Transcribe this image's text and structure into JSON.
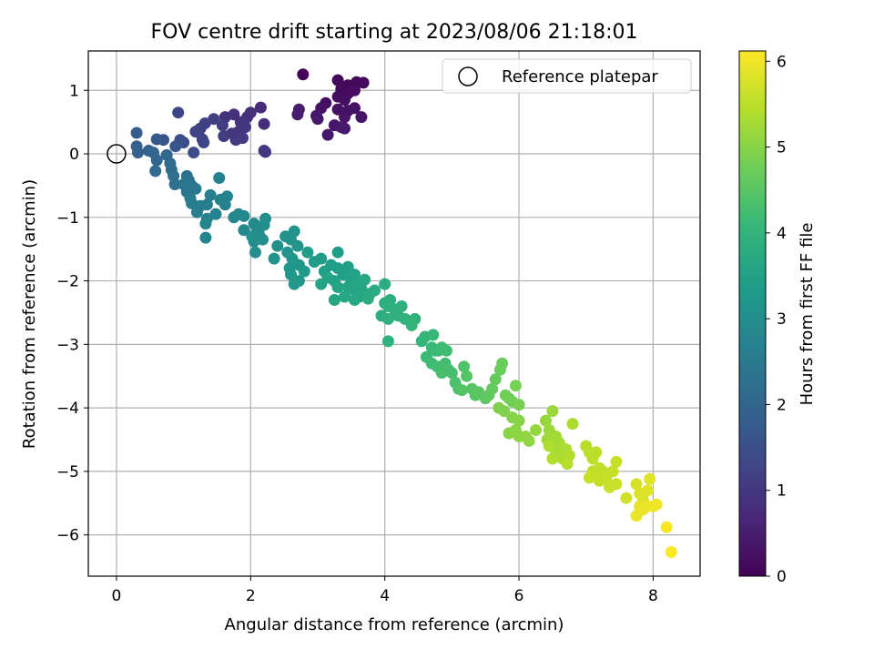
{
  "chart_data": {
    "type": "scatter",
    "title": "FOV centre drift starting at 2023/08/06 21:18:01",
    "xlabel": "Angular distance from reference (arcmin)",
    "ylabel": "Rotation from reference (arcmin)",
    "xlim": [
      -0.42,
      8.7
    ],
    "ylim": [
      -6.65,
      1.62
    ],
    "xticks": [
      0,
      2,
      4,
      6,
      8
    ],
    "yticks": [
      1,
      0,
      -1,
      -2,
      -3,
      -4,
      -5,
      -6
    ],
    "grid": true,
    "legend": {
      "placement": "top-right",
      "entries": [
        "Reference platepar"
      ]
    },
    "reference_point": {
      "x": 0,
      "y": 0,
      "marker": "open-circle"
    },
    "colorbar": {
      "label": "Hours from first FF file",
      "range": [
        0,
        6.12
      ],
      "ticks": [
        0,
        1,
        2,
        3,
        4,
        5,
        6
      ],
      "colormap": "viridis",
      "colormap_stops": [
        "#440154",
        "#482878",
        "#3e4989",
        "#31688e",
        "#26828e",
        "#1f9e89",
        "#35b779",
        "#6ece58",
        "#b5de2b",
        "#fde725"
      ]
    },
    "series": [
      {
        "points": [
          [
            2.78,
            1.25,
            0.05
          ],
          [
            3.3,
            1.16,
            0.1
          ],
          [
            3.45,
            1.08,
            0.1
          ],
          [
            3.58,
            1.13,
            0.12
          ],
          [
            3.68,
            1.12,
            0.15
          ],
          [
            3.35,
            1.02,
            0.15
          ],
          [
            3.45,
            0.95,
            0.15
          ],
          [
            3.55,
            1.0,
            0.2
          ],
          [
            3.3,
            0.9,
            0.2
          ],
          [
            3.4,
            0.85,
            0.25
          ],
          [
            3.12,
            0.8,
            0.25
          ],
          [
            3.05,
            0.72,
            0.3
          ],
          [
            3.3,
            0.7,
            0.3
          ],
          [
            3.45,
            0.68,
            0.3
          ],
          [
            3.55,
            0.72,
            0.3
          ],
          [
            3.65,
            0.58,
            0.35
          ],
          [
            3.4,
            0.58,
            0.35
          ],
          [
            3.25,
            0.45,
            0.35
          ],
          [
            3.0,
            0.55,
            0.4
          ],
          [
            2.98,
            0.6,
            0.4
          ],
          [
            3.4,
            0.4,
            0.4
          ],
          [
            3.35,
            0.42,
            0.45
          ],
          [
            3.15,
            0.3,
            0.4
          ],
          [
            2.72,
            0.7,
            0.5
          ],
          [
            2.7,
            0.62,
            0.5
          ],
          [
            2.15,
            0.73,
            0.75
          ],
          [
            2.2,
            0.47,
            0.8
          ],
          [
            2.0,
            0.65,
            0.8
          ],
          [
            1.95,
            0.58,
            0.85
          ],
          [
            1.85,
            0.5,
            0.9
          ],
          [
            1.75,
            0.62,
            0.85
          ],
          [
            1.62,
            0.58,
            0.9
          ],
          [
            1.82,
            0.35,
            0.95
          ],
          [
            1.72,
            0.32,
            1.0
          ],
          [
            1.92,
            0.42,
            1.0
          ],
          [
            1.88,
            0.25,
            1.05
          ],
          [
            1.78,
            0.22,
            1.05
          ],
          [
            1.6,
            0.28,
            1.1
          ],
          [
            1.58,
            0.45,
            1.1
          ],
          [
            1.45,
            0.55,
            1.15
          ],
          [
            1.32,
            0.48,
            1.2
          ],
          [
            1.25,
            0.4,
            1.2
          ],
          [
            1.18,
            0.35,
            1.25
          ],
          [
            1.28,
            0.23,
            1.25
          ],
          [
            2.22,
            0.03,
            0.95
          ],
          [
            2.2,
            0.05,
            1.0
          ],
          [
            0.92,
            0.65,
            1.3
          ],
          [
            1.0,
            0.18,
            1.4
          ],
          [
            1.15,
            0.02,
            1.45
          ],
          [
            1.3,
            0.18,
            1.3
          ],
          [
            0.95,
            0.22,
            1.5
          ],
          [
            0.7,
            0.22,
            1.6
          ],
          [
            0.88,
            0.12,
            1.65
          ],
          [
            0.6,
            0.23,
            1.7
          ],
          [
            0.3,
            0.33,
            1.8
          ],
          [
            0.3,
            0.12,
            1.85
          ],
          [
            0.32,
            0.02,
            1.9
          ],
          [
            0.48,
            0.05,
            1.9
          ],
          [
            0.55,
            0.02,
            2.0
          ],
          [
            0.6,
            -0.1,
            2.0
          ],
          [
            0.75,
            -0.02,
            2.05
          ],
          [
            0.8,
            -0.15,
            2.1
          ],
          [
            0.58,
            -0.27,
            2.1
          ],
          [
            0.82,
            -0.25,
            2.15
          ],
          [
            0.85,
            -0.35,
            2.2
          ],
          [
            0.87,
            -0.48,
            2.25
          ],
          [
            1.05,
            -0.35,
            2.3
          ],
          [
            1.08,
            -0.42,
            2.35
          ],
          [
            1.12,
            -0.5,
            2.35
          ],
          [
            1.05,
            -0.6,
            2.4
          ],
          [
            1.18,
            -0.55,
            2.45
          ],
          [
            1.0,
            -0.48,
            2.4
          ],
          [
            1.1,
            -0.7,
            2.5
          ],
          [
            1.12,
            -0.78,
            2.55
          ],
          [
            1.2,
            -0.92,
            2.6
          ],
          [
            1.25,
            -0.82,
            2.6
          ],
          [
            1.35,
            -0.8,
            2.65
          ],
          [
            1.4,
            -0.65,
            2.65
          ],
          [
            1.48,
            -0.95,
            2.7
          ],
          [
            1.55,
            -0.72,
            2.7
          ],
          [
            1.53,
            -0.38,
            2.7
          ],
          [
            1.62,
            -0.8,
            2.75
          ],
          [
            1.65,
            -0.67,
            2.75
          ],
          [
            1.35,
            -1.02,
            2.75
          ],
          [
            1.33,
            -1.1,
            2.8
          ],
          [
            1.33,
            -1.32,
            2.8
          ],
          [
            1.75,
            -1.0,
            2.85
          ],
          [
            1.82,
            -0.95,
            2.85
          ],
          [
            1.9,
            -0.98,
            2.9
          ],
          [
            1.9,
            -1.2,
            2.9
          ],
          [
            2.05,
            -1.1,
            2.95
          ],
          [
            2.1,
            -1.18,
            2.95
          ],
          [
            2.12,
            -1.25,
            2.95
          ],
          [
            2.2,
            -1.12,
            3.0
          ],
          [
            2.22,
            -1.02,
            3.0
          ],
          [
            2.18,
            -1.35,
            3.0
          ],
          [
            2.07,
            -1.55,
            3.0
          ],
          [
            2.05,
            -1.38,
            3.0
          ],
          [
            2.02,
            -1.3,
            3.05
          ],
          [
            2.4,
            -1.45,
            3.05
          ],
          [
            2.52,
            -1.3,
            3.1
          ],
          [
            2.6,
            -1.35,
            3.1
          ],
          [
            2.65,
            -1.22,
            3.15
          ],
          [
            2.7,
            -1.45,
            3.15
          ],
          [
            2.55,
            -1.55,
            3.15
          ],
          [
            2.35,
            -1.65,
            3.15
          ],
          [
            2.62,
            -1.65,
            3.2
          ],
          [
            2.58,
            -1.8,
            3.2
          ],
          [
            2.72,
            -1.75,
            3.2
          ],
          [
            2.6,
            -1.9,
            3.2
          ],
          [
            2.65,
            -2.05,
            3.25
          ],
          [
            2.72,
            -2.0,
            3.25
          ],
          [
            2.8,
            -1.85,
            3.3
          ],
          [
            2.85,
            -1.55,
            3.35
          ],
          [
            2.95,
            -1.7,
            3.35
          ],
          [
            3.05,
            -1.65,
            3.35
          ],
          [
            3.1,
            -1.85,
            3.4
          ],
          [
            3.2,
            -1.75,
            3.4
          ],
          [
            3.3,
            -1.55,
            3.4
          ],
          [
            3.3,
            -1.8,
            3.45
          ],
          [
            3.38,
            -1.9,
            3.45
          ],
          [
            3.45,
            -1.78,
            3.45
          ],
          [
            3.5,
            -2.0,
            3.5
          ],
          [
            3.55,
            -1.9,
            3.5
          ],
          [
            3.25,
            -2.0,
            3.5
          ],
          [
            3.3,
            -2.1,
            3.55
          ],
          [
            3.45,
            -2.1,
            3.55
          ],
          [
            3.55,
            -2.15,
            3.55
          ],
          [
            3.6,
            -2.05,
            3.6
          ],
          [
            3.65,
            -2.12,
            3.6
          ],
          [
            3.62,
            -2.25,
            3.65
          ],
          [
            3.55,
            -2.3,
            3.65
          ],
          [
            3.4,
            -2.25,
            3.65
          ],
          [
            3.25,
            -2.3,
            3.6
          ],
          [
            3.05,
            -2.05,
            3.6
          ],
          [
            3.15,
            -1.95,
            3.55
          ],
          [
            3.7,
            -1.98,
            3.65
          ],
          [
            3.78,
            -2.2,
            3.7
          ],
          [
            3.85,
            -2.15,
            3.75
          ],
          [
            3.75,
            -2.28,
            3.75
          ],
          [
            3.95,
            -2.55,
            3.8
          ],
          [
            4.0,
            -2.35,
            3.8
          ],
          [
            4.05,
            -2.4,
            3.85
          ],
          [
            4.0,
            -2.05,
            3.8
          ],
          [
            4.08,
            -2.3,
            3.85
          ],
          [
            4.15,
            -2.45,
            3.9
          ],
          [
            4.2,
            -2.55,
            3.9
          ],
          [
            4.25,
            -2.4,
            3.9
          ],
          [
            4.05,
            -2.6,
            3.9
          ],
          [
            4.3,
            -2.6,
            3.95
          ],
          [
            4.45,
            -2.6,
            3.95
          ],
          [
            4.4,
            -2.7,
            4.0
          ],
          [
            4.05,
            -2.95,
            3.95
          ],
          [
            4.55,
            -2.95,
            4.05
          ],
          [
            4.6,
            -2.88,
            4.05
          ],
          [
            4.72,
            -2.85,
            4.1
          ],
          [
            4.7,
            -3.05,
            4.1
          ],
          [
            4.75,
            -3.1,
            4.15
          ],
          [
            4.8,
            -3.1,
            4.15
          ],
          [
            4.62,
            -3.2,
            4.15
          ],
          [
            4.85,
            -3.05,
            4.2
          ],
          [
            4.92,
            -3.1,
            4.2
          ],
          [
            4.7,
            -3.3,
            4.2
          ],
          [
            4.78,
            -3.35,
            4.25
          ],
          [
            4.9,
            -3.3,
            4.25
          ],
          [
            4.95,
            -3.4,
            4.3
          ],
          [
            5.0,
            -3.45,
            4.3
          ],
          [
            4.85,
            -3.45,
            4.3
          ],
          [
            5.05,
            -3.6,
            4.35
          ],
          [
            5.1,
            -3.7,
            4.35
          ],
          [
            5.18,
            -3.35,
            4.4
          ],
          [
            5.22,
            -3.5,
            4.45
          ],
          [
            5.15,
            -3.72,
            4.45
          ],
          [
            5.3,
            -3.7,
            4.5
          ],
          [
            5.35,
            -3.8,
            4.5
          ],
          [
            5.4,
            -3.75,
            4.55
          ],
          [
            5.5,
            -3.85,
            4.55
          ],
          [
            5.55,
            -3.8,
            4.6
          ],
          [
            5.6,
            -3.7,
            4.65
          ],
          [
            5.65,
            -3.55,
            4.65
          ],
          [
            5.72,
            -3.4,
            4.7
          ],
          [
            5.75,
            -3.3,
            4.7
          ],
          [
            5.8,
            -3.8,
            4.75
          ],
          [
            5.85,
            -3.85,
            4.75
          ],
          [
            5.9,
            -3.9,
            4.8
          ],
          [
            5.95,
            -3.65,
            4.85
          ],
          [
            6.0,
            -3.95,
            4.85
          ],
          [
            5.7,
            -4.0,
            4.9
          ],
          [
            5.78,
            -4.05,
            4.9
          ],
          [
            5.9,
            -4.15,
            4.95
          ],
          [
            6.0,
            -4.2,
            5.0
          ],
          [
            5.85,
            -4.4,
            5.0
          ],
          [
            5.95,
            -4.35,
            5.05
          ],
          [
            6.0,
            -4.45,
            5.05
          ],
          [
            6.1,
            -4.45,
            5.1
          ],
          [
            6.15,
            -4.52,
            5.1
          ],
          [
            6.25,
            -4.35,
            5.15
          ],
          [
            6.4,
            -4.2,
            5.15
          ],
          [
            6.45,
            -4.35,
            5.2
          ],
          [
            6.5,
            -4.05,
            5.2
          ],
          [
            6.42,
            -4.5,
            5.25
          ],
          [
            6.55,
            -4.45,
            5.25
          ],
          [
            6.6,
            -4.55,
            5.3
          ],
          [
            6.55,
            -4.68,
            5.3
          ],
          [
            6.7,
            -4.65,
            5.35
          ],
          [
            6.65,
            -4.8,
            5.35
          ],
          [
            6.75,
            -4.75,
            5.4
          ],
          [
            6.8,
            -4.25,
            5.35
          ],
          [
            6.5,
            -4.8,
            5.4
          ],
          [
            6.72,
            -4.88,
            5.45
          ],
          [
            6.45,
            -4.6,
            5.4
          ],
          [
            7.0,
            -4.6,
            5.45
          ],
          [
            7.05,
            -4.7,
            5.5
          ],
          [
            7.1,
            -4.8,
            5.5
          ],
          [
            7.15,
            -4.7,
            5.5
          ],
          [
            7.2,
            -4.95,
            5.55
          ],
          [
            7.25,
            -5.0,
            5.55
          ],
          [
            7.1,
            -5.0,
            5.55
          ],
          [
            7.05,
            -5.1,
            5.6
          ],
          [
            7.2,
            -5.15,
            5.6
          ],
          [
            7.3,
            -5.1,
            5.6
          ],
          [
            7.35,
            -5.25,
            5.65
          ],
          [
            7.45,
            -5.2,
            5.65
          ],
          [
            7.4,
            -5.0,
            5.6
          ],
          [
            7.45,
            -4.85,
            5.6
          ],
          [
            7.6,
            -5.42,
            5.7
          ],
          [
            7.75,
            -5.2,
            5.75
          ],
          [
            7.8,
            -5.35,
            5.8
          ],
          [
            7.85,
            -5.45,
            5.8
          ],
          [
            7.92,
            -5.3,
            5.85
          ],
          [
            7.95,
            -5.12,
            5.85
          ],
          [
            7.9,
            -5.55,
            5.9
          ],
          [
            7.8,
            -5.55,
            5.9
          ],
          [
            7.85,
            -5.6,
            5.95
          ],
          [
            8.0,
            -5.55,
            5.95
          ],
          [
            8.05,
            -5.52,
            6.0
          ],
          [
            7.75,
            -5.7,
            5.95
          ],
          [
            8.2,
            -5.88,
            6.05
          ],
          [
            8.27,
            -6.27,
            6.1
          ]
        ]
      }
    ]
  }
}
